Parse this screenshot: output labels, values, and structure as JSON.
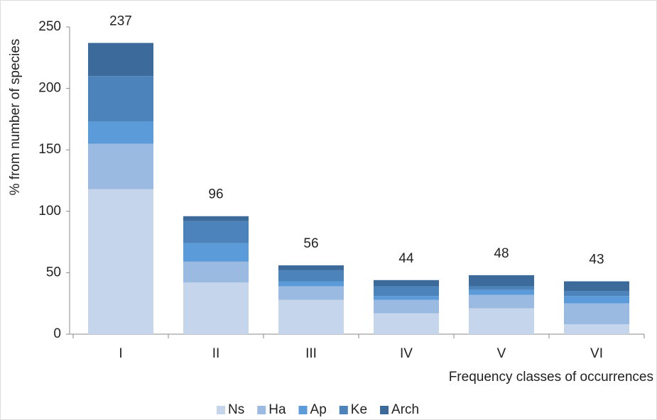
{
  "chart_data": {
    "type": "stacked_bar",
    "y_label": "% from number of species",
    "x_label": "Frequency classes of occurrences",
    "categories": [
      "I",
      "II",
      "III",
      "IV",
      "V",
      "VI"
    ],
    "series": [
      {
        "name": "Ns",
        "color": "#c5d6ec",
        "values": [
          118,
          42,
          28,
          17,
          21,
          8
        ]
      },
      {
        "name": "Ha",
        "color": "#9bbae1",
        "values": [
          37,
          17,
          11,
          11,
          11,
          17
        ]
      },
      {
        "name": "Ap",
        "color": "#5c9bd9",
        "values": [
          18,
          15,
          4,
          3,
          4,
          6
        ]
      },
      {
        "name": "Ke",
        "color": "#4b83ba",
        "values": [
          37,
          18,
          9,
          8,
          3,
          4
        ]
      },
      {
        "name": "Arch",
        "color": "#3c6b9b",
        "values": [
          27,
          4,
          4,
          5,
          9,
          8
        ]
      }
    ],
    "totals": [
      237,
      96,
      56,
      44,
      48,
      43
    ],
    "ylim": [
      0,
      250
    ],
    "yticks": [
      0,
      50,
      100,
      150,
      200,
      250
    ],
    "grid": false,
    "legend": "bottom"
  }
}
